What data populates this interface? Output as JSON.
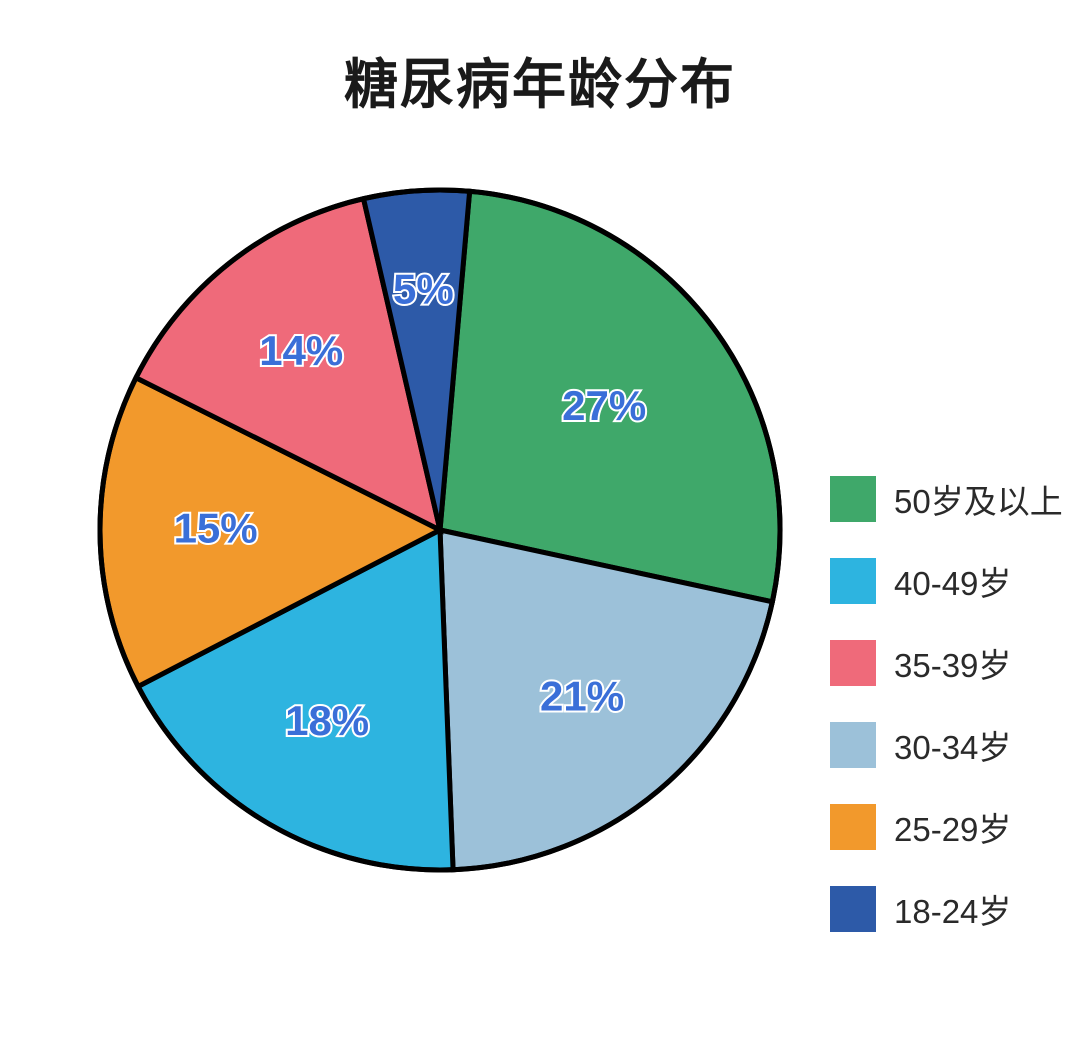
{
  "chart": {
    "type": "pie",
    "title": "糖尿病年龄分布",
    "title_fontsize": 54,
    "title_color": "#1a1a1a",
    "background_color": "#ffffff",
    "radius": 340,
    "start_angle_deg": -85,
    "stroke_color": "#000000",
    "stroke_width": 5,
    "label_fontsize": 42,
    "label_fill": "#3a6fd8",
    "label_stroke": "#ffffff",
    "label_stroke_width": 4,
    "slices": [
      {
        "label": "50岁及以上",
        "value": 27,
        "display": "27%",
        "color": "#3fa86a"
      },
      {
        "label": "30-34岁",
        "value": 21,
        "display": "21%",
        "color": "#9cc1d9"
      },
      {
        "label": "40-49岁",
        "value": 18,
        "display": "18%",
        "color": "#2db4e0"
      },
      {
        "label": "25-29岁",
        "value": 15,
        "display": "15%",
        "color": "#f2992c"
      },
      {
        "label": "35-39岁",
        "value": 14,
        "display": "14%",
        "color": "#ef6a7a"
      },
      {
        "label": "18-24岁",
        "value": 5,
        "display": "5%",
        "color": "#2d5aa8"
      }
    ],
    "legend": {
      "swatch_size": 46,
      "fontsize": 33,
      "text_color": "#2a2a2a",
      "items": [
        {
          "label": "50岁及以上",
          "color": "#3fa86a"
        },
        {
          "label": "40-49岁",
          "color": "#2db4e0"
        },
        {
          "label": "35-39岁",
          "color": "#ef6a7a"
        },
        {
          "label": "30-34岁",
          "color": "#9cc1d9"
        },
        {
          "label": "25-29岁",
          "color": "#f2992c"
        },
        {
          "label": "18-24岁",
          "color": "#2d5aa8"
        }
      ]
    }
  }
}
